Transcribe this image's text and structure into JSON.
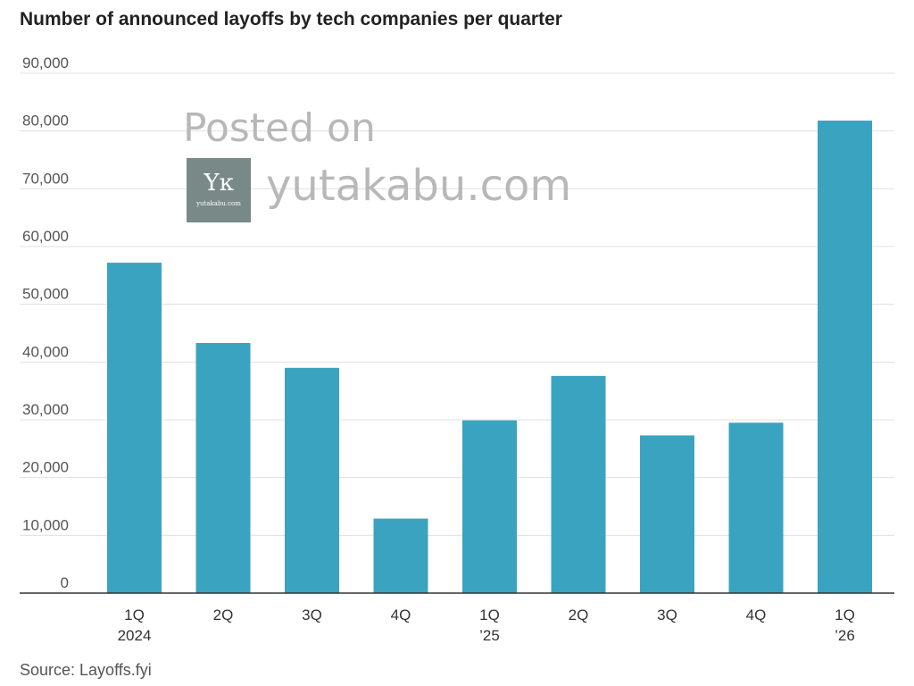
{
  "chart_data": {
    "type": "bar",
    "title": "Number of announced layoffs by tech companies per quarter",
    "categories": [
      {
        "line1": "1Q",
        "line2": "2024"
      },
      {
        "line1": "2Q",
        "line2": ""
      },
      {
        "line1": "3Q",
        "line2": ""
      },
      {
        "line1": "4Q",
        "line2": ""
      },
      {
        "line1": "1Q",
        "line2": "’25"
      },
      {
        "line1": "2Q",
        "line2": ""
      },
      {
        "line1": "3Q",
        "line2": ""
      },
      {
        "line1": "4Q",
        "line2": ""
      },
      {
        "line1": "1Q",
        "line2": "’26"
      }
    ],
    "values": [
      57200,
      43300,
      39000,
      12900,
      29900,
      37600,
      27300,
      29500,
      81800
    ],
    "ylim": [
      0,
      90000
    ],
    "yticks": [
      0,
      10000,
      20000,
      30000,
      40000,
      50000,
      60000,
      70000,
      80000,
      90000
    ],
    "ytick_labels": [
      "0",
      "10,000",
      "20,000",
      "30,000",
      "40,000",
      "50,000",
      "60,000",
      "70,000",
      "80,000",
      "90,000"
    ],
    "xlabel": "",
    "ylabel": "",
    "grid": true,
    "bar_color": "#3aa3bf",
    "grid_color": "#e0e0e0",
    "axis_color": "#333333"
  },
  "source": "Source: Layoffs.fyi",
  "watermark": {
    "line1": "Posted on",
    "line2": "yutakabu.com",
    "logo_mark": "Yĸ",
    "logo_text": "yutakabu.com"
  }
}
